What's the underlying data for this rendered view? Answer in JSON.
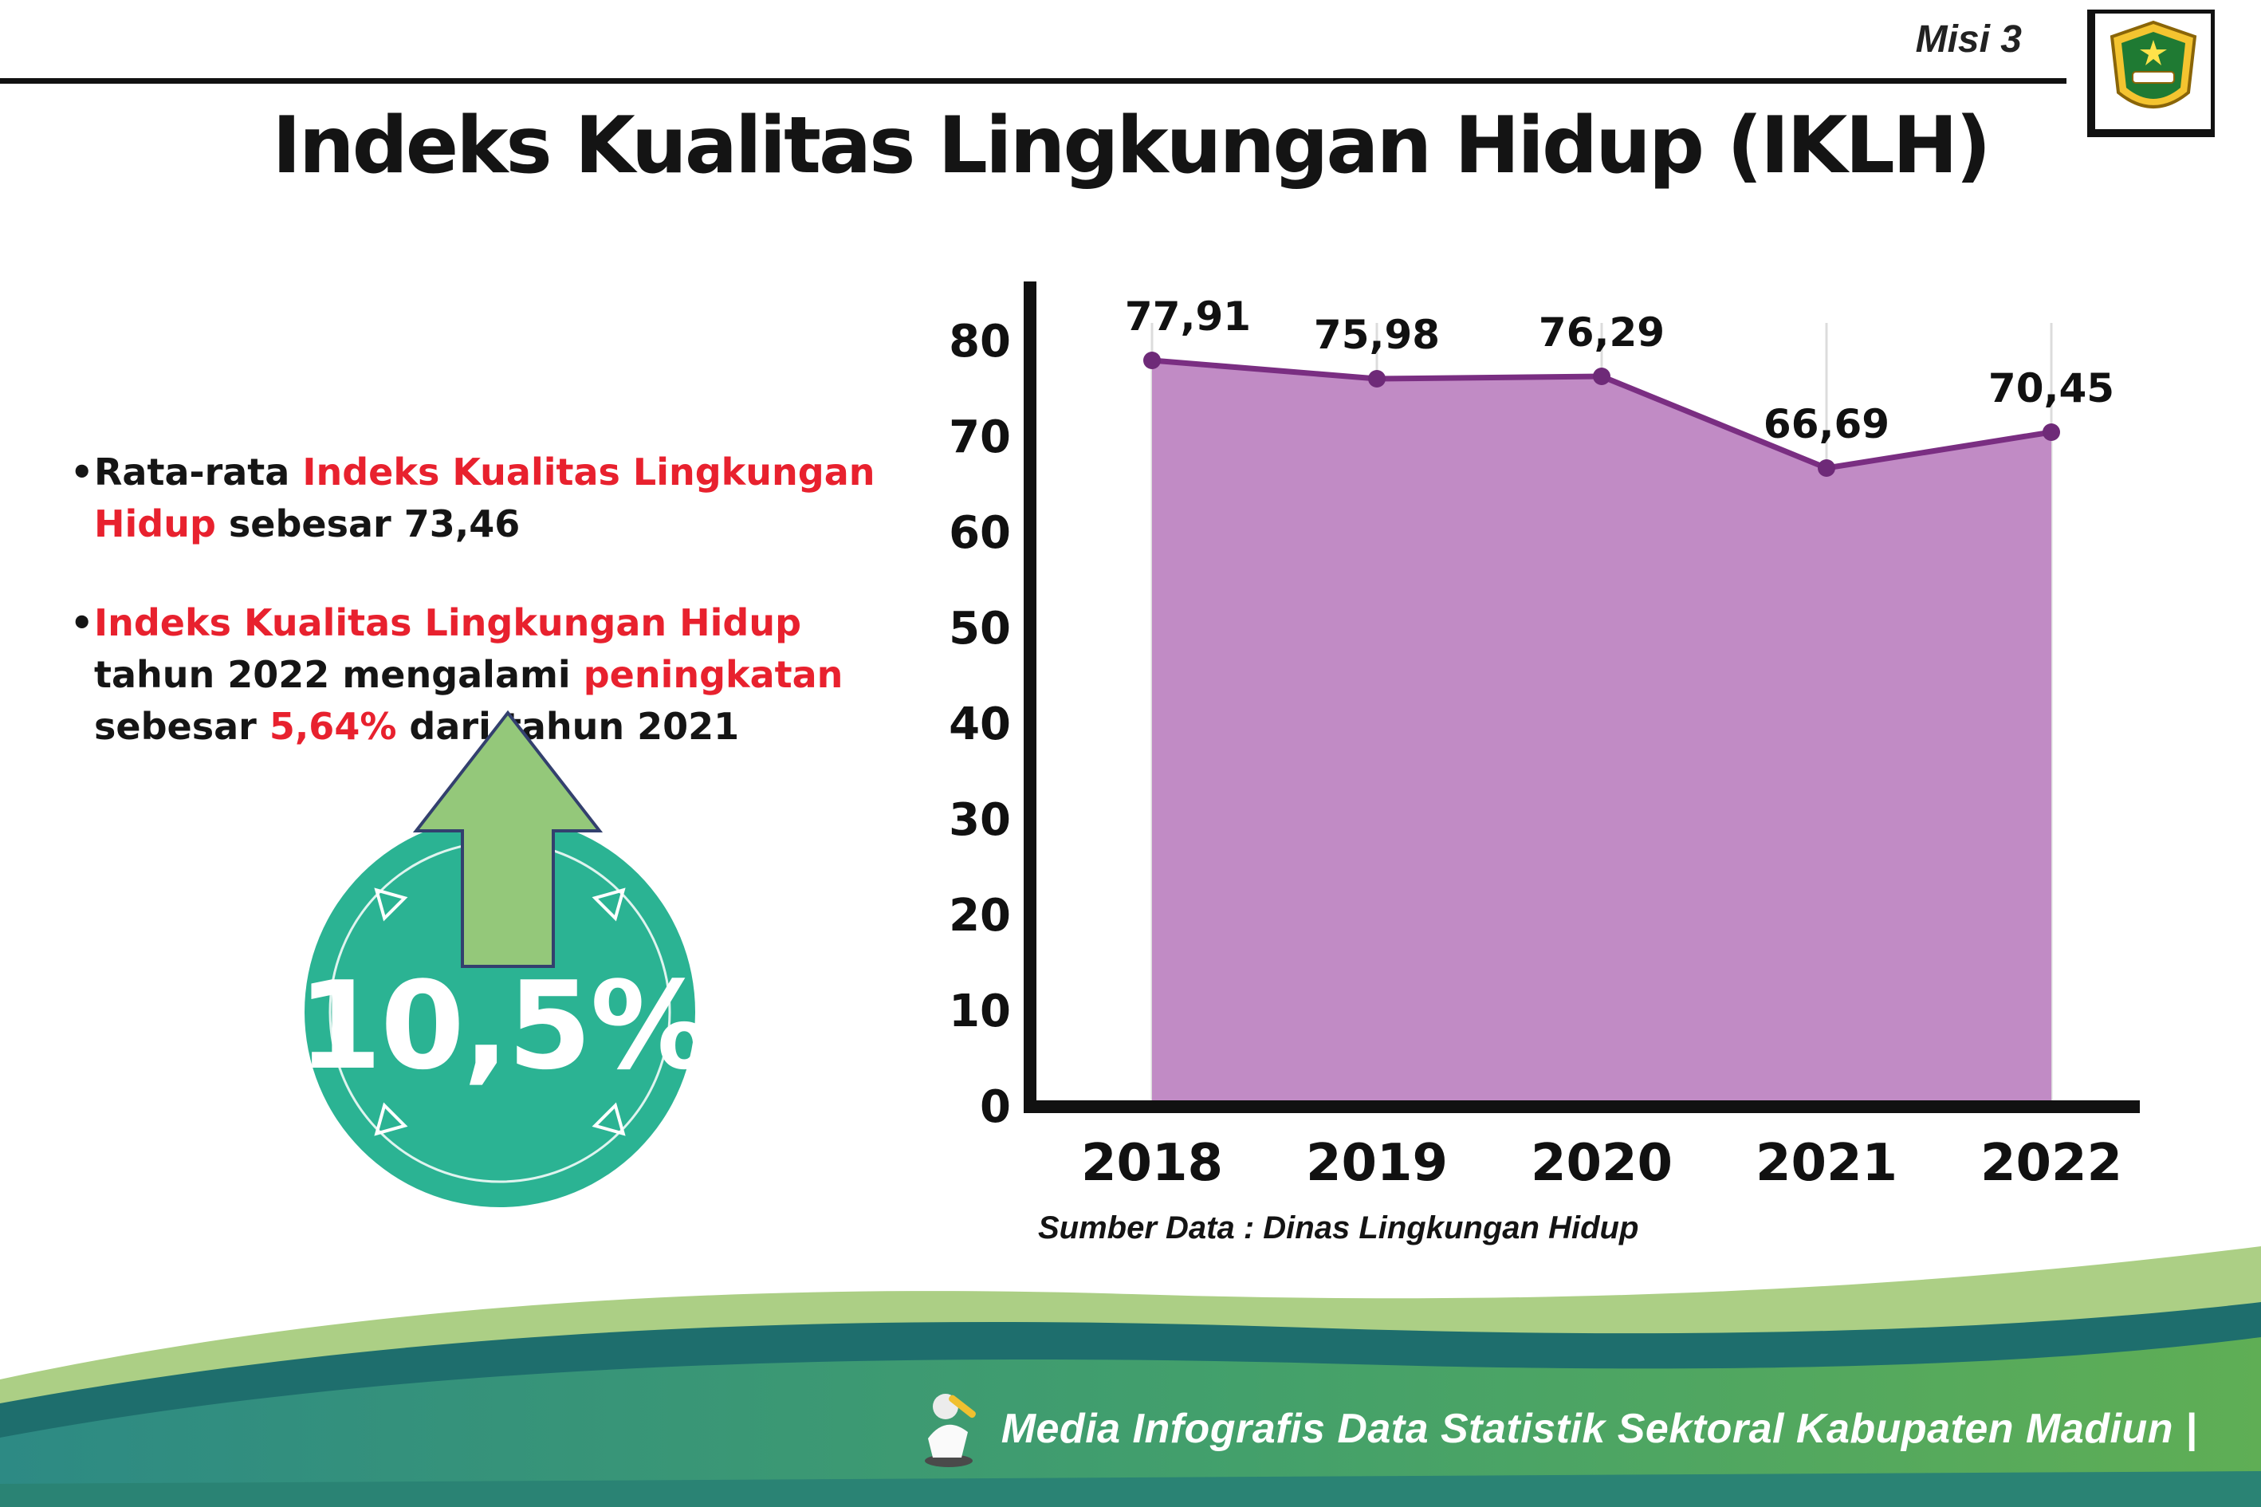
{
  "header": {
    "misi_label": "Misi 3",
    "title": "Indeks Kualitas Lingkungan Hidup (IKLH)"
  },
  "bullets": {
    "b1": {
      "p1": "Rata-rata ",
      "p2": "Indeks Kualitas Lingkungan Hidup",
      "p3": " sebesar 73,46"
    },
    "b2": {
      "p1": "Indeks Kualitas Lingkungan Hidup",
      "p2": " tahun 2022 mengalami ",
      "p3": "peningkatan",
      "p4": " sebesar ",
      "p5": "5,64%",
      "p6": " dari tahun 2021"
    }
  },
  "badge": {
    "value": "10,5%",
    "circle_color": "#2bb393",
    "arrow_color": "#94c87a"
  },
  "chart_data": {
    "type": "area",
    "categories": [
      "2018",
      "2019",
      "2020",
      "2021",
      "2022"
    ],
    "values": [
      77.91,
      75.98,
      76.29,
      66.69,
      70.45
    ],
    "value_labels": [
      "77,91",
      "75,98",
      "76,29",
      "66,69",
      "70,45"
    ],
    "ylim": [
      0,
      80
    ],
    "yticks": [
      0,
      10,
      20,
      30,
      40,
      50,
      60,
      70,
      80
    ],
    "grid": "vertical",
    "legend": "none",
    "colors": {
      "area_fill": "#c18bc5",
      "line": "#7a2e82",
      "point": "#6e2a78",
      "axis": "#111111",
      "grid": "#dcdcdc"
    },
    "source": "Sumber Data : Dinas Lingkungan Hidup"
  },
  "footer": {
    "credit": "Media Infografis Data Statistik Sektoral Kabupaten Madiun |"
  }
}
